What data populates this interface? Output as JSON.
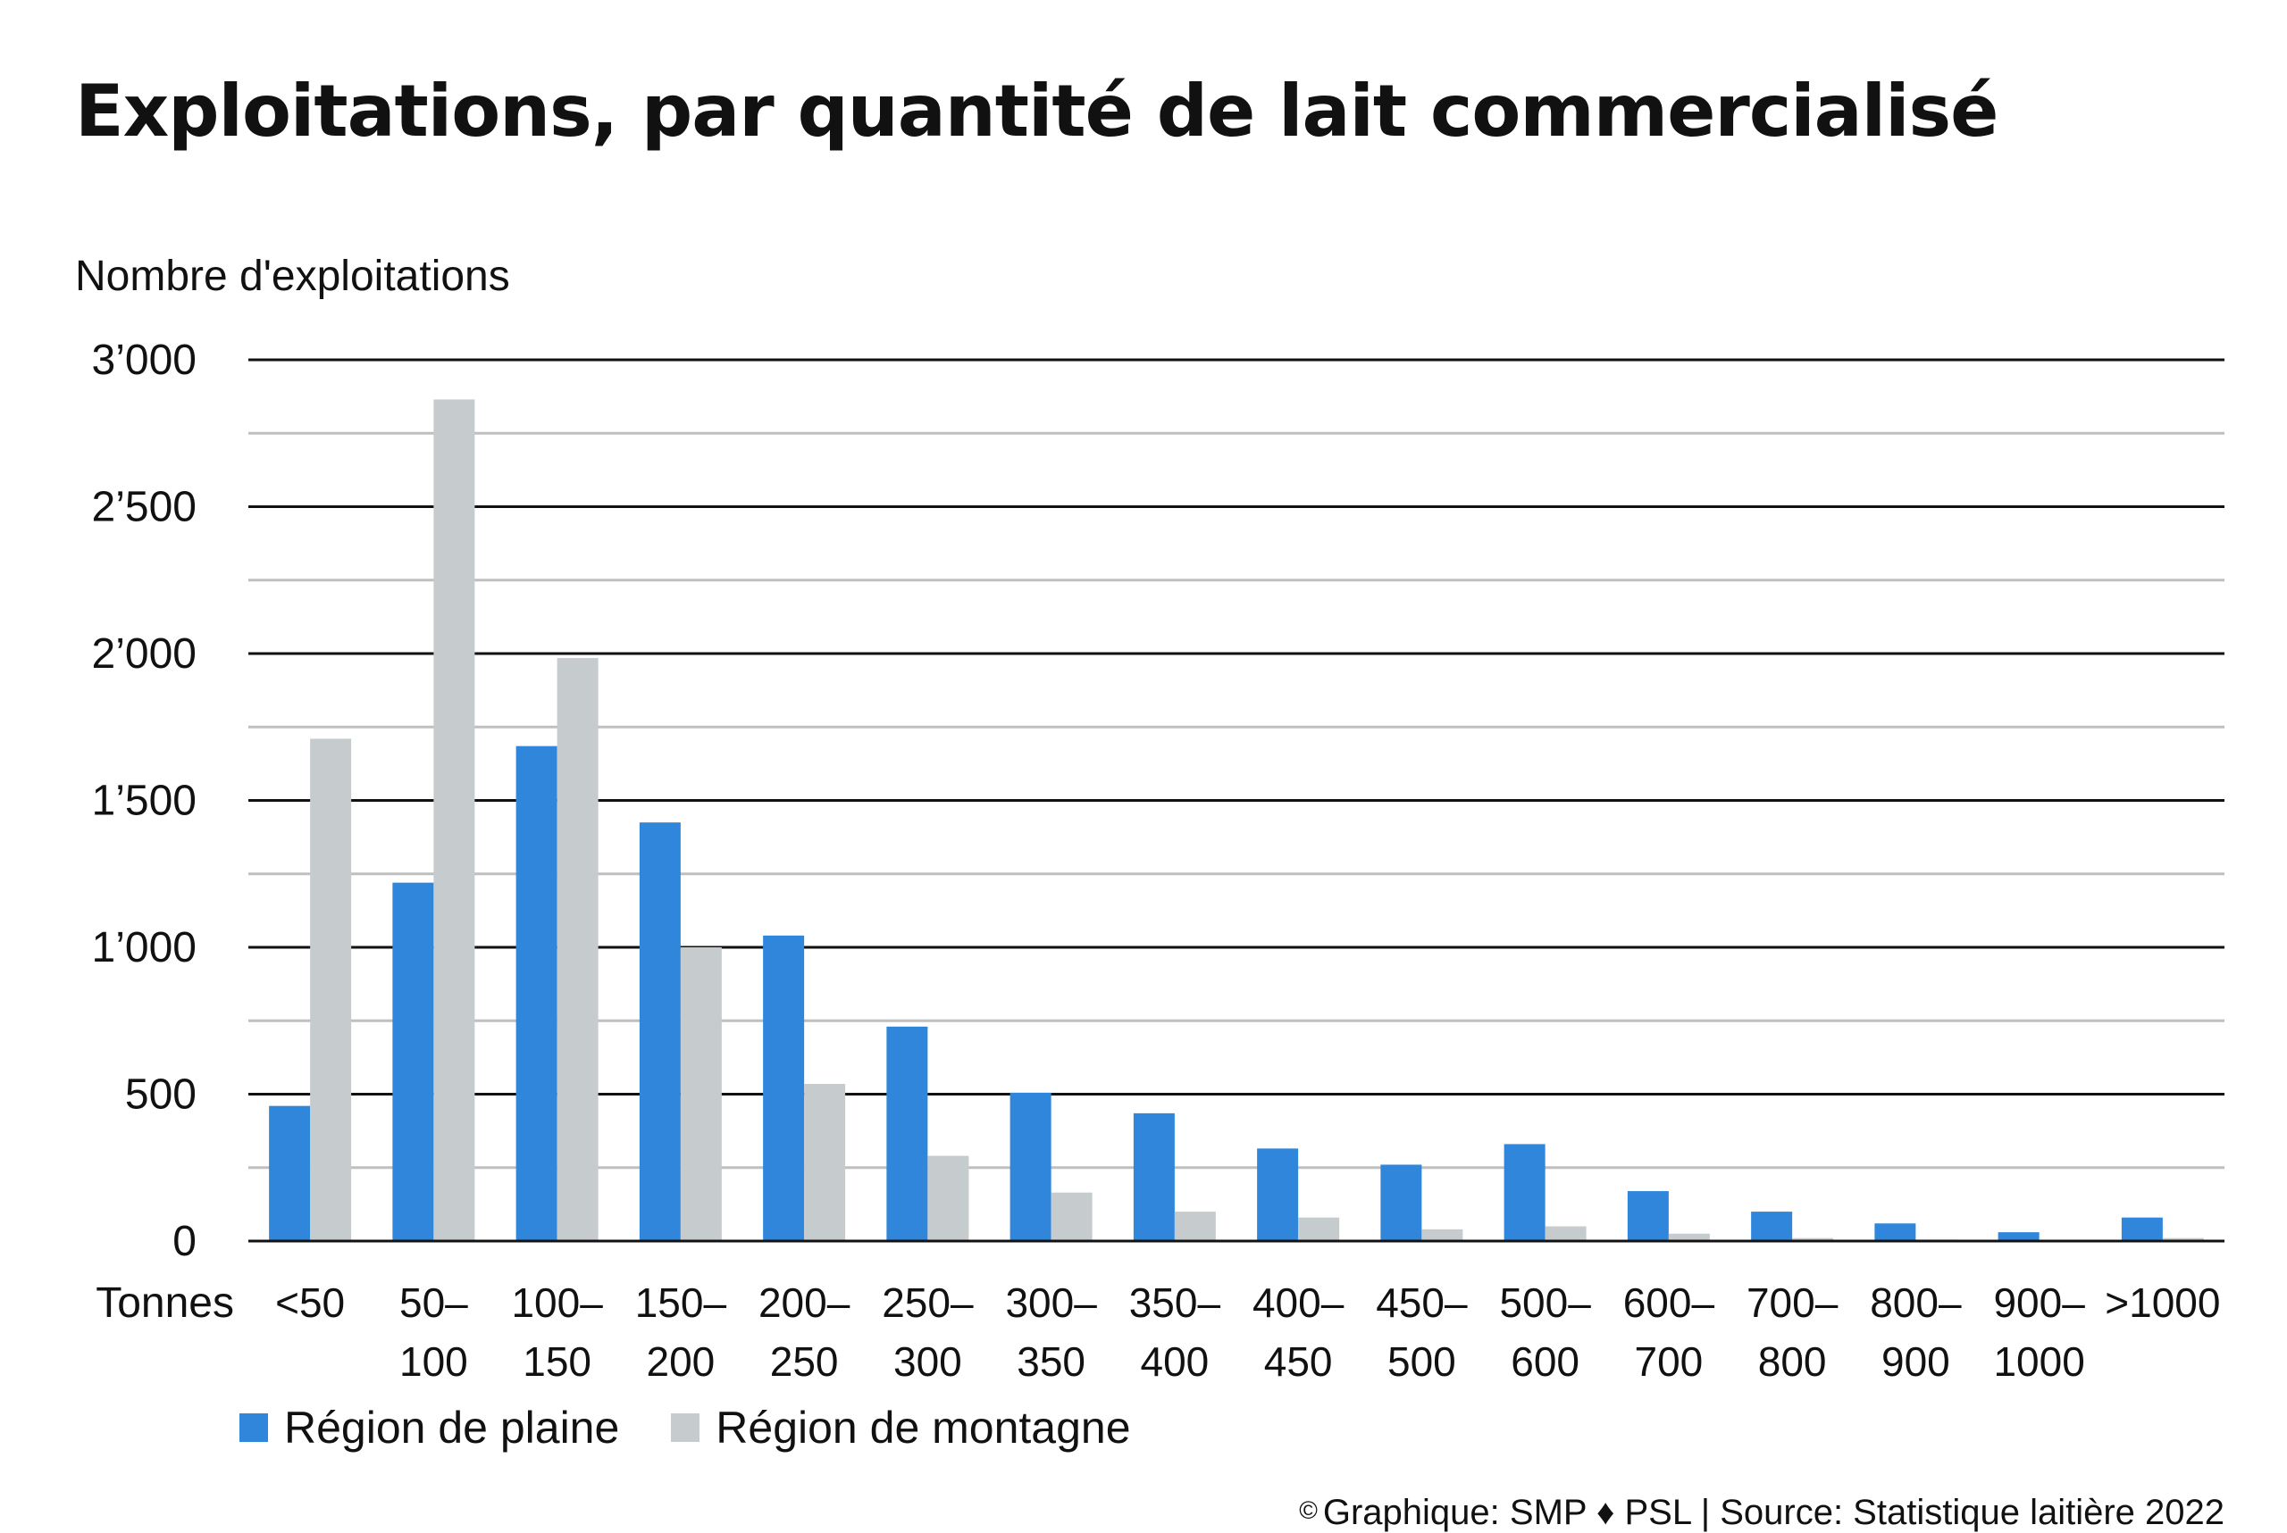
{
  "title": "Exploitations, par quantité de lait commercialisé",
  "footer": {
    "copyright_symbol": "©",
    "text": "Graphique: SMP ♦ PSL | Source: Statistique laitière 2022"
  },
  "colors": {
    "plaine": "#2f86db",
    "montagne": "#c6cbce",
    "major_grid": "#111111",
    "minor_grid": "#bfbfbf"
  },
  "chart_data": {
    "type": "bar",
    "title": "Exploitations, par quantité de lait commercialisé",
    "ylabel": "Nombre d'exploitations",
    "xlabel": "Tonnes",
    "ylim": [
      0,
      3000
    ],
    "yticks": [
      0,
      500,
      1000,
      1500,
      2000,
      2500,
      3000
    ],
    "ytick_labels": [
      "0",
      "500",
      "1’000",
      "1’500",
      "2’000",
      "2’500",
      "3’000"
    ],
    "grid": true,
    "legend_position": "bottom-left",
    "categories": [
      "<50",
      "50–100",
      "100–150",
      "150–200",
      "200–250",
      "250–300",
      "300–350",
      "350–400",
      "400–450",
      "450–500",
      "500–600",
      "600–700",
      "700–800",
      "800–900",
      "900–1000",
      ">1000"
    ],
    "category_label_lines": [
      [
        "<50"
      ],
      [
        "50–",
        "100"
      ],
      [
        "100–",
        "150"
      ],
      [
        "150–",
        "200"
      ],
      [
        "200–",
        "250"
      ],
      [
        "250–",
        "300"
      ],
      [
        "300–",
        "350"
      ],
      [
        "350–",
        "400"
      ],
      [
        "400–",
        "450"
      ],
      [
        "450–",
        "500"
      ],
      [
        "500–",
        "600"
      ],
      [
        "600–",
        "700"
      ],
      [
        "700–",
        "800"
      ],
      [
        "800–",
        "900"
      ],
      [
        "900–",
        "1000"
      ],
      [
        ">1000"
      ]
    ],
    "series": [
      {
        "name": "Région de plaine",
        "color": "#2f86db",
        "values": [
          460,
          1220,
          1685,
          1425,
          1040,
          730,
          505,
          435,
          315,
          260,
          330,
          170,
          100,
          60,
          30,
          80
        ]
      },
      {
        "name": "Région de montagne",
        "color": "#c6cbce",
        "values": [
          1710,
          2865,
          1985,
          1000,
          535,
          290,
          165,
          100,
          80,
          40,
          50,
          25,
          10,
          5,
          3,
          10
        ]
      }
    ]
  }
}
